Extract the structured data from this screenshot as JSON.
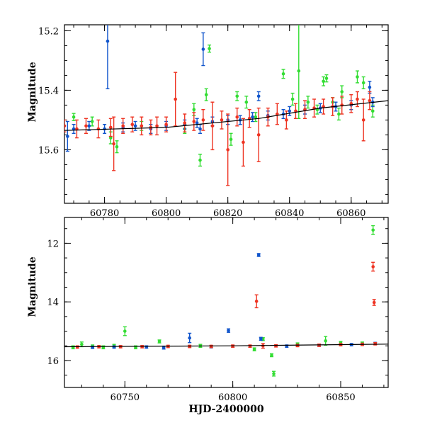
{
  "figure": {
    "ylabel": "Magnitude",
    "xlabel": "HJD-2400000",
    "colors": {
      "green": "#33dd33",
      "blue": "#1155cc",
      "red": "#ee3322",
      "trend": "#000000"
    }
  },
  "chart_data": [
    {
      "type": "scatter",
      "title": "",
      "xlabel": "",
      "ylabel": "Magnitude",
      "xlim": [
        60767,
        60872
      ],
      "ylim": [
        15.78,
        15.18
      ],
      "y_inverted": true,
      "xticks": [
        60780,
        60800,
        60820,
        60840,
        60860
      ],
      "yticks": [
        15.2,
        15.4,
        15.6
      ],
      "ytick_labels": [
        "15.2",
        "15.4",
        "15.6"
      ],
      "trend_line": {
        "x": [
          60767,
          60800,
          60830,
          60850,
          60872
        ],
        "y": [
          15.535,
          15.525,
          15.495,
          15.46,
          15.435
        ]
      },
      "series": [
        {
          "color": "green",
          "points": [
            {
              "x": 60770,
              "y": 15.49,
              "err": 0.012
            },
            {
              "x": 60776,
              "y": 15.505,
              "err": 0.015
            },
            {
              "x": 60782,
              "y": 15.56,
              "err": 0.02
            },
            {
              "x": 60784,
              "y": 15.59,
              "err": 0.02
            },
            {
              "x": 60792,
              "y": 15.52,
              "err": 0.015
            },
            {
              "x": 60806,
              "y": 15.53,
              "err": 0.015
            },
            {
              "x": 60809,
              "y": 15.465,
              "err": 0.02
            },
            {
              "x": 60811,
              "y": 15.635,
              "err": 0.02
            },
            {
              "x": 60813,
              "y": 15.415,
              "err": 0.02
            },
            {
              "x": 60814,
              "y": 15.26,
              "err": 0.012
            },
            {
              "x": 60821,
              "y": 15.565,
              "err": 0.02
            },
            {
              "x": 60823,
              "y": 15.42,
              "err": 0.015
            },
            {
              "x": 60826,
              "y": 15.44,
              "err": 0.02
            },
            {
              "x": 60829,
              "y": 15.49,
              "err": 0.015
            },
            {
              "x": 60838,
              "y": 15.345,
              "err": 0.015
            },
            {
              "x": 60841,
              "y": 15.43,
              "err": 0.02
            },
            {
              "x": 60843,
              "y": 15.335,
              "err": 0.16
            },
            {
              "x": 60846,
              "y": 15.44,
              "err": 0.02
            },
            {
              "x": 60849,
              "y": 15.465,
              "err": 0.015
            },
            {
              "x": 60851,
              "y": 15.37,
              "err": 0.015
            },
            {
              "x": 60852,
              "y": 15.36,
              "err": 0.012
            },
            {
              "x": 60854,
              "y": 15.44,
              "err": 0.015
            },
            {
              "x": 60856,
              "y": 15.48,
              "err": 0.02
            },
            {
              "x": 60857,
              "y": 15.405,
              "err": 0.02
            },
            {
              "x": 60862,
              "y": 15.355,
              "err": 0.02
            },
            {
              "x": 60864,
              "y": 15.375,
              "err": 0.02
            },
            {
              "x": 60867,
              "y": 15.47,
              "err": 0.02
            }
          ]
        },
        {
          "color": "blue",
          "points": [
            {
              "x": 60768,
              "y": 15.555,
              "err": 0.05
            },
            {
              "x": 60770,
              "y": 15.53,
              "err": 0.015
            },
            {
              "x": 60775,
              "y": 15.52,
              "err": 0.015
            },
            {
              "x": 60780,
              "y": 15.53,
              "err": 0.015
            },
            {
              "x": 60781,
              "y": 15.235,
              "err": 0.16
            },
            {
              "x": 60786,
              "y": 15.525,
              "err": 0.015
            },
            {
              "x": 60790,
              "y": 15.52,
              "err": 0.015
            },
            {
              "x": 60795,
              "y": 15.53,
              "err": 0.015
            },
            {
              "x": 60800,
              "y": 15.52,
              "err": 0.015
            },
            {
              "x": 60806,
              "y": 15.515,
              "err": 0.015
            },
            {
              "x": 60810,
              "y": 15.51,
              "err": 0.015
            },
            {
              "x": 60811,
              "y": 15.53,
              "err": 0.015
            },
            {
              "x": 60812,
              "y": 15.262,
              "err": 0.055
            },
            {
              "x": 60815,
              "y": 15.505,
              "err": 0.015
            },
            {
              "x": 60820,
              "y": 15.5,
              "err": 0.015
            },
            {
              "x": 60824,
              "y": 15.5,
              "err": 0.015
            },
            {
              "x": 60828,
              "y": 15.49,
              "err": 0.015
            },
            {
              "x": 60830,
              "y": 15.42,
              "err": 0.015
            },
            {
              "x": 60833,
              "y": 15.485,
              "err": 0.015
            },
            {
              "x": 60838,
              "y": 15.48,
              "err": 0.015
            },
            {
              "x": 60840,
              "y": 15.47,
              "err": 0.015
            },
            {
              "x": 60845,
              "y": 15.465,
              "err": 0.015
            },
            {
              "x": 60850,
              "y": 15.46,
              "err": 0.015
            },
            {
              "x": 60855,
              "y": 15.455,
              "err": 0.015
            },
            {
              "x": 60860,
              "y": 15.45,
              "err": 0.015
            },
            {
              "x": 60866,
              "y": 15.39,
              "err": 0.02
            },
            {
              "x": 60867,
              "y": 15.44,
              "err": 0.015
            }
          ]
        },
        {
          "color": "red",
          "points": [
            {
              "x": 60767,
              "y": 15.52,
              "err": 0.02
            },
            {
              "x": 60771,
              "y": 15.53,
              "err": 0.03
            },
            {
              "x": 60774,
              "y": 15.52,
              "err": 0.025
            },
            {
              "x": 60778,
              "y": 15.53,
              "err": 0.03
            },
            {
              "x": 60782,
              "y": 15.525,
              "err": 0.03
            },
            {
              "x": 60783,
              "y": 15.58,
              "err": 0.09
            },
            {
              "x": 60786,
              "y": 15.52,
              "err": 0.025
            },
            {
              "x": 60789,
              "y": 15.515,
              "err": 0.025
            },
            {
              "x": 60792,
              "y": 15.52,
              "err": 0.03
            },
            {
              "x": 60795,
              "y": 15.525,
              "err": 0.025
            },
            {
              "x": 60797,
              "y": 15.52,
              "err": 0.03
            },
            {
              "x": 60800,
              "y": 15.515,
              "err": 0.025
            },
            {
              "x": 60803,
              "y": 15.43,
              "err": 0.09
            },
            {
              "x": 60806,
              "y": 15.51,
              "err": 0.03
            },
            {
              "x": 60809,
              "y": 15.505,
              "err": 0.03
            },
            {
              "x": 60812,
              "y": 15.5,
              "err": 0.035
            },
            {
              "x": 60815,
              "y": 15.52,
              "err": 0.08
            },
            {
              "x": 60818,
              "y": 15.5,
              "err": 0.03
            },
            {
              "x": 60820,
              "y": 15.6,
              "err": 0.12
            },
            {
              "x": 60823,
              "y": 15.49,
              "err": 0.03
            },
            {
              "x": 60825,
              "y": 15.575,
              "err": 0.08
            },
            {
              "x": 60827,
              "y": 15.495,
              "err": 0.03
            },
            {
              "x": 60830,
              "y": 15.55,
              "err": 0.09
            },
            {
              "x": 60833,
              "y": 15.49,
              "err": 0.03
            },
            {
              "x": 60836,
              "y": 15.48,
              "err": 0.035
            },
            {
              "x": 60839,
              "y": 15.5,
              "err": 0.03
            },
            {
              "x": 60842,
              "y": 15.47,
              "err": 0.025
            },
            {
              "x": 60845,
              "y": 15.465,
              "err": 0.03
            },
            {
              "x": 60848,
              "y": 15.46,
              "err": 0.03
            },
            {
              "x": 60851,
              "y": 15.455,
              "err": 0.025
            },
            {
              "x": 60854,
              "y": 15.455,
              "err": 0.03
            },
            {
              "x": 60857,
              "y": 15.45,
              "err": 0.03
            },
            {
              "x": 60860,
              "y": 15.445,
              "err": 0.03
            },
            {
              "x": 60862,
              "y": 15.43,
              "err": 0.025
            },
            {
              "x": 60864,
              "y": 15.5,
              "err": 0.07
            },
            {
              "x": 60866,
              "y": 15.435,
              "err": 0.03
            }
          ]
        }
      ]
    },
    {
      "type": "scatter",
      "title": "",
      "xlabel": "HJD-2400000",
      "ylabel": "Magnitude",
      "xlim": [
        60722,
        60872
      ],
      "ylim": [
        16.92,
        11.12
      ],
      "y_inverted": true,
      "xticks": [
        60750,
        60800,
        60850
      ],
      "yticks": [
        12,
        14,
        16
      ],
      "ytick_labels": [
        "12",
        "14",
        "16"
      ],
      "trend_line": {
        "x": [
          60722,
          60800,
          60872
        ],
        "y": [
          15.53,
          15.5,
          15.44
        ]
      },
      "series": [
        {
          "color": "green",
          "points": [
            {
              "x": 60726,
              "y": 15.55,
              "err": 0.05
            },
            {
              "x": 60730,
              "y": 15.45,
              "err": 0.08
            },
            {
              "x": 60735,
              "y": 15.52,
              "err": 0.05
            },
            {
              "x": 60740,
              "y": 15.55,
              "err": 0.05
            },
            {
              "x": 60745,
              "y": 15.5,
              "err": 0.05
            },
            {
              "x": 60750,
              "y": 15.0,
              "err": 0.15
            },
            {
              "x": 60755,
              "y": 15.55,
              "err": 0.05
            },
            {
              "x": 60766,
              "y": 15.35,
              "err": 0.05
            },
            {
              "x": 60785,
              "y": 15.5,
              "err": 0.05
            },
            {
              "x": 60810,
              "y": 15.62,
              "err": 0.05
            },
            {
              "x": 60814,
              "y": 15.27,
              "err": 0.05
            },
            {
              "x": 60818,
              "y": 15.82,
              "err": 0.05
            },
            {
              "x": 60819,
              "y": 16.45,
              "err": 0.08
            },
            {
              "x": 60830,
              "y": 15.45,
              "err": 0.05
            },
            {
              "x": 60843,
              "y": 15.33,
              "err": 0.15
            },
            {
              "x": 60850,
              "y": 15.4,
              "err": 0.05
            },
            {
              "x": 60860,
              "y": 15.42,
              "err": 0.05
            },
            {
              "x": 60865,
              "y": 11.55,
              "err": 0.15
            }
          ]
        },
        {
          "color": "blue",
          "points": [
            {
              "x": 60735,
              "y": 15.55,
              "err": 0.04
            },
            {
              "x": 60745,
              "y": 15.54,
              "err": 0.04
            },
            {
              "x": 60760,
              "y": 15.54,
              "err": 0.04
            },
            {
              "x": 60768,
              "y": 15.56,
              "err": 0.05
            },
            {
              "x": 60780,
              "y": 15.23,
              "err": 0.16
            },
            {
              "x": 60790,
              "y": 15.53,
              "err": 0.04
            },
            {
              "x": 60798,
              "y": 14.98,
              "err": 0.06
            },
            {
              "x": 60812,
              "y": 12.4,
              "err": 0.05
            },
            {
              "x": 60813,
              "y": 15.26,
              "err": 0.05
            },
            {
              "x": 60825,
              "y": 15.51,
              "err": 0.04
            },
            {
              "x": 60840,
              "y": 15.48,
              "err": 0.04
            },
            {
              "x": 60855,
              "y": 15.46,
              "err": 0.04
            },
            {
              "x": 60866,
              "y": 15.42,
              "err": 0.04
            }
          ]
        },
        {
          "color": "red",
          "points": [
            {
              "x": 60728,
              "y": 15.54,
              "err": 0.04
            },
            {
              "x": 60738,
              "y": 15.53,
              "err": 0.04
            },
            {
              "x": 60748,
              "y": 15.53,
              "err": 0.04
            },
            {
              "x": 60758,
              "y": 15.53,
              "err": 0.04
            },
            {
              "x": 60770,
              "y": 15.52,
              "err": 0.04
            },
            {
              "x": 60780,
              "y": 15.52,
              "err": 0.04
            },
            {
              "x": 60790,
              "y": 15.52,
              "err": 0.04
            },
            {
              "x": 60800,
              "y": 15.51,
              "err": 0.04
            },
            {
              "x": 60808,
              "y": 15.51,
              "err": 0.04
            },
            {
              "x": 60811,
              "y": 13.98,
              "err": 0.22
            },
            {
              "x": 60814,
              "y": 15.5,
              "err": 0.08
            },
            {
              "x": 60820,
              "y": 15.5,
              "err": 0.04
            },
            {
              "x": 60830,
              "y": 15.49,
              "err": 0.04
            },
            {
              "x": 60840,
              "y": 15.48,
              "err": 0.04
            },
            {
              "x": 60850,
              "y": 15.46,
              "err": 0.04
            },
            {
              "x": 60860,
              "y": 15.45,
              "err": 0.04
            },
            {
              "x": 60865,
              "y": 12.8,
              "err": 0.15
            },
            {
              "x": 60865.5,
              "y": 14.02,
              "err": 0.1
            },
            {
              "x": 60866,
              "y": 15.43,
              "err": 0.04
            }
          ]
        }
      ]
    }
  ]
}
